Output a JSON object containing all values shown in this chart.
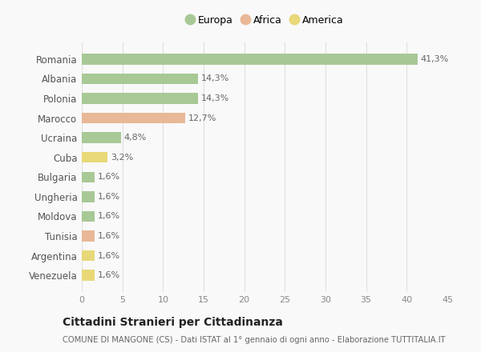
{
  "categories": [
    "Venezuela",
    "Argentina",
    "Tunisia",
    "Moldova",
    "Ungheria",
    "Bulgaria",
    "Cuba",
    "Ucraina",
    "Marocco",
    "Polonia",
    "Albania",
    "Romania"
  ],
  "values": [
    1.6,
    1.6,
    1.6,
    1.6,
    1.6,
    1.6,
    3.2,
    4.8,
    12.7,
    14.3,
    14.3,
    41.3
  ],
  "labels": [
    "1,6%",
    "1,6%",
    "1,6%",
    "1,6%",
    "1,6%",
    "1,6%",
    "3,2%",
    "4,8%",
    "12,7%",
    "14,3%",
    "14,3%",
    "41,3%"
  ],
  "colors": [
    "#e8d878",
    "#e8d878",
    "#e8b898",
    "#a8c896",
    "#a8c896",
    "#a8c896",
    "#e8d878",
    "#a8c896",
    "#e8b898",
    "#a8c896",
    "#a8c896",
    "#a8c896"
  ],
  "legend": [
    {
      "label": "Europa",
      "color": "#a8c896"
    },
    {
      "label": "Africa",
      "color": "#e8b898"
    },
    {
      "label": "America",
      "color": "#e8d878"
    }
  ],
  "xlim": [
    0,
    45
  ],
  "xticks": [
    0,
    5,
    10,
    15,
    20,
    25,
    30,
    35,
    40,
    45
  ],
  "title": "Cittadini Stranieri per Cittadinanza",
  "subtitle": "COMUNE DI MANGONE (CS) - Dati ISTAT al 1° gennaio di ogni anno - Elaborazione TUTTITALIA.IT",
  "background_color": "#f9f9f9",
  "grid_color": "#e0e0e0",
  "bar_height": 0.55
}
